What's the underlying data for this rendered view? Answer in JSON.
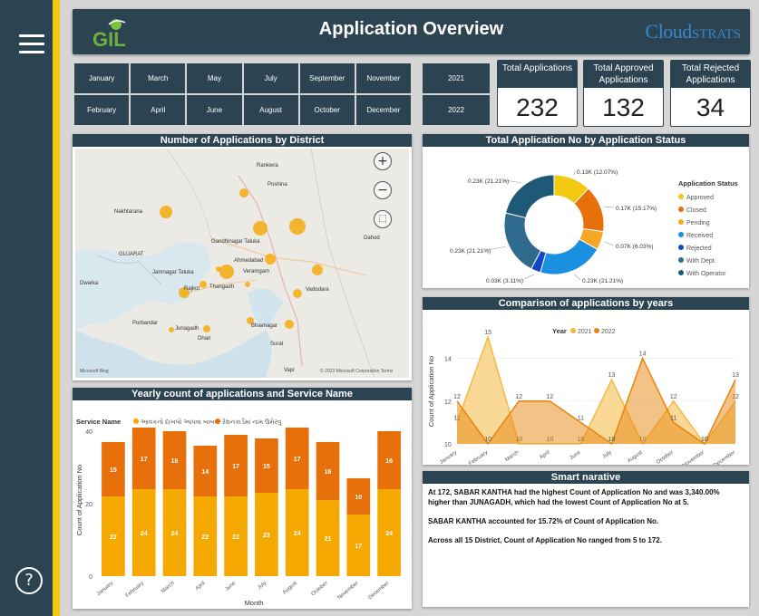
{
  "header": {
    "title": "Application Overview",
    "logo_left": "GIL",
    "logo_right_main": "Cloud",
    "logo_right_tail": "STRATS"
  },
  "sidebar": {
    "help_label": "?"
  },
  "months": [
    "January",
    "March",
    "May",
    "July",
    "September",
    "November",
    "February",
    "April",
    "June",
    "August",
    "October",
    "December"
  ],
  "years": [
    "2021",
    "2022"
  ],
  "kpis": [
    {
      "label": "Total Applications",
      "value": "232"
    },
    {
      "label": "Total Approved Applications",
      "value": "132"
    },
    {
      "label": "Total Rejected Applications",
      "value": "34"
    }
  ],
  "map_card": {
    "title": "Number of Applications by District",
    "places": [
      "Rankwra",
      "Poshina",
      "Nakhtarana",
      "GUJARAT",
      "Gandhinagar Taluka",
      "Ahmedabad",
      "Veramgam",
      "Jamnagar Taluka",
      "Rajkot",
      "Thangadh",
      "Vadodara",
      "Porbandar",
      "Junagadh",
      "Bhavnagar",
      "Dhari",
      "Surat",
      "Dahod",
      "Dwarka",
      "Vapi"
    ],
    "attribution": "© 2023 Microsoft Corporation  Terms",
    "brand": "Microsoft Bing"
  },
  "donut_card": {
    "title": "Total Application No by Application Status",
    "legend_title": "Application Status",
    "slice_labels": [
      "0.13K (12.07%)",
      "0.17K (15.17%)",
      "0.07K (6.03%)",
      "0.23K (21.21%)",
      "0.03K (3.11%)",
      "0.23K (21.21%)",
      "0.23K (21.21%)"
    ]
  },
  "years_card": {
    "title": "Comparison of applications by years",
    "legend_title": "Year",
    "xlabel": "Month",
    "ylabel": "Count of Application No"
  },
  "service_card": {
    "title": "Yearly count of applications and Service Name",
    "legend_title": "Service Name",
    "xlabel": "Month",
    "ylabel": "Count of Application No"
  },
  "narrative_card": {
    "title": "Smart narative",
    "p1": "At 172, SABAR KANTHA had the highest Count of Application No and was 3,340.00% higher than JUNAGADH, which had the lowest Count of Application No at 5.",
    "p2": "SABAR KANTHA accounted for 15.72% of Count of Application No.",
    "p3": "Across all 15 District, Count of Application No ranged from 5 to 172."
  },
  "chart_data": [
    {
      "type": "pie",
      "title": "Total Application No by Application Status",
      "categories": [
        "Approved",
        "Closed",
        "Pending",
        "Received",
        "Rejected",
        "With Dept.",
        "With Operator"
      ],
      "values": [
        12.07,
        15.17,
        6.03,
        21.21,
        3.11,
        21.21,
        21.21
      ],
      "colors": [
        "#f2c811",
        "#e8700a",
        "#f5a623",
        "#1b8fe0",
        "#1447c8",
        "#2f6b8f",
        "#1e5a78"
      ],
      "legend": "right"
    },
    {
      "type": "area",
      "title": "Comparison of applications by years",
      "categories": [
        "January",
        "February",
        "March",
        "April",
        "June",
        "July",
        "August",
        "October",
        "November",
        "December"
      ],
      "series": [
        {
          "name": "2021",
          "values": [
            11,
            15,
            10,
            10,
            10,
            13,
            10,
            12,
            10,
            12
          ],
          "color": "#f5b942"
        },
        {
          "name": "2022",
          "values": [
            12,
            10,
            12,
            12,
            11,
            10,
            14,
            11,
            10,
            13
          ],
          "color": "#e8850f"
        }
      ],
      "ylim": [
        10,
        15
      ],
      "yticks": [
        10,
        12,
        14
      ],
      "xlabel": "Month",
      "ylabel": "Count of Application No",
      "legend": "top-left"
    },
    {
      "type": "bar",
      "title": "Yearly count of applications and Service Name",
      "categories": [
        "January",
        "February",
        "March",
        "April",
        "June",
        "July",
        "August",
        "October",
        "November",
        "December"
      ],
      "series": [
        {
          "name": "આવકનો દાખલો આપવા બાબત",
          "values": [
            22,
            24,
            24,
            22,
            22,
            23,
            24,
            21,
            17,
            24
          ],
          "color": "#f5a800"
        },
        {
          "name": "રેશનકાર્ડમાં નામ ઉમેરવુ",
          "values": [
            15,
            17,
            16,
            14,
            17,
            15,
            17,
            16,
            10,
            16
          ],
          "color": "#e8700a"
        }
      ],
      "ylim": [
        0,
        42
      ],
      "yticks": [
        0,
        20,
        40
      ],
      "xlabel": "Month",
      "ylabel": "Count of Application No",
      "legend": "top-left"
    }
  ]
}
